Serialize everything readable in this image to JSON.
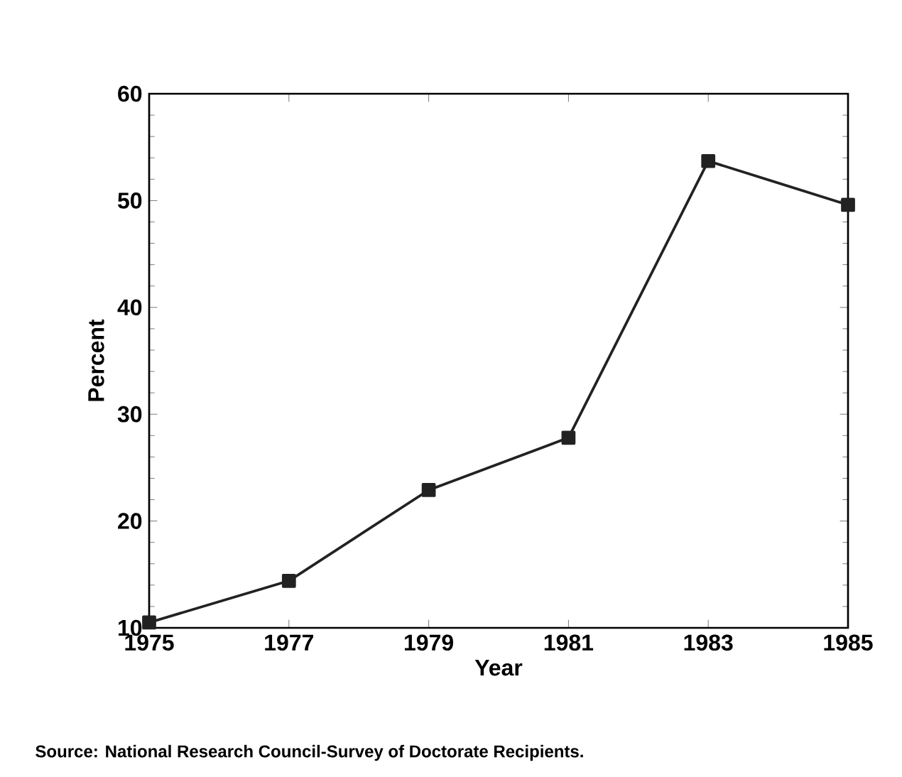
{
  "chart_data": {
    "type": "line",
    "xlabel": "Year",
    "ylabel": "Percent",
    "x": [
      1975,
      1977,
      1979,
      1981,
      1983,
      1985
    ],
    "values": [
      10.5,
      14.4,
      22.9,
      27.8,
      53.7,
      49.6
    ],
    "color": "#222222",
    "marker": "square",
    "line_style": "solid",
    "xlim": [
      1975,
      1985
    ],
    "xticks": [
      1975,
      1977,
      1979,
      1981,
      1983,
      1985
    ],
    "ylim": [
      10,
      60
    ],
    "yticks": [
      10,
      20,
      30,
      40,
      50,
      60
    ],
    "annotations": [
      "Source: National Research Council-Survey of Doctorate Recipients."
    ]
  }
}
